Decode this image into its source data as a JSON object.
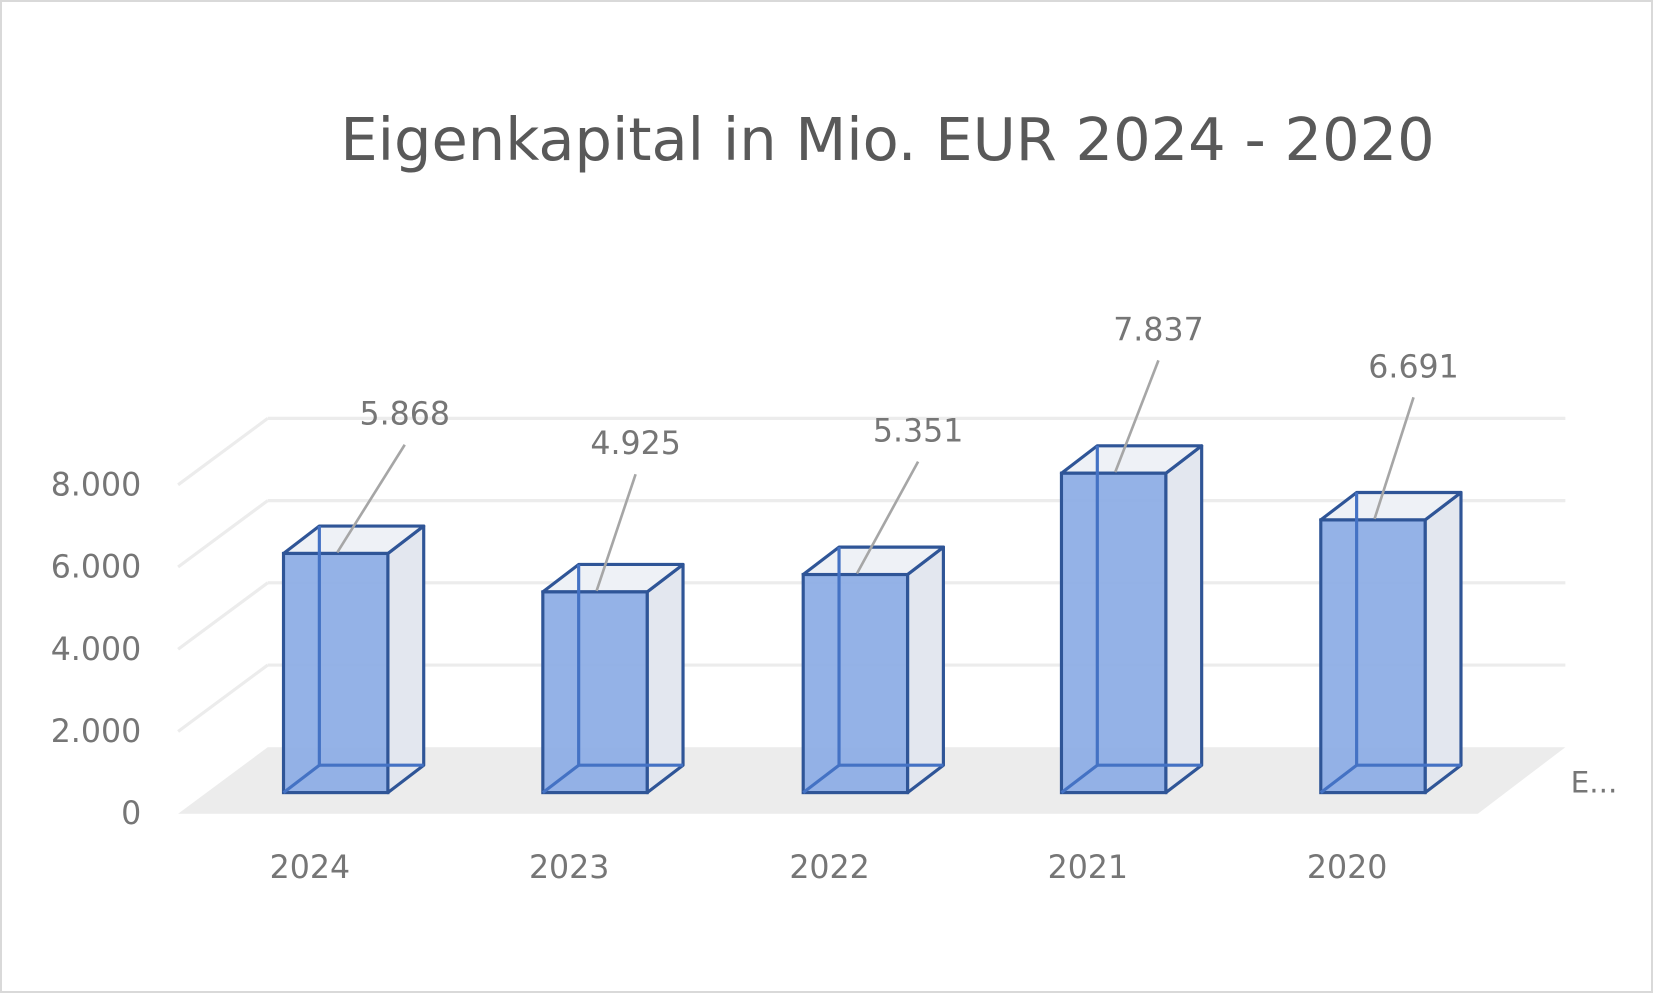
{
  "chart_data": {
    "type": "bar",
    "title": "Eigenkapital in Mio. EUR 2024 - 2020",
    "categories": [
      "2024",
      "2023",
      "2022",
      "2021",
      "2020"
    ],
    "series": [
      {
        "name": "E...",
        "values": [
          5868,
          4925,
          5351,
          7837,
          6691
        ]
      }
    ],
    "data_labels": [
      "5.868",
      "4.925",
      "5.351",
      "7.837",
      "6.691"
    ],
    "y_ticks": [
      "0",
      "2.000",
      "4.000",
      "6.000",
      "8.000"
    ],
    "y_tick_values": [
      0,
      2000,
      4000,
      6000,
      8000
    ],
    "ylim": [
      0,
      8000
    ],
    "xlabel": "",
    "ylabel": "",
    "depth_axis_label": "E...",
    "grid": true,
    "style": "3d-column",
    "colors": {
      "bar_fill": "#8eaee6",
      "bar_edge": "#2f5597",
      "text": "#767676",
      "title": "#595959",
      "grid": "#ececec",
      "floor": "#ececec"
    }
  }
}
